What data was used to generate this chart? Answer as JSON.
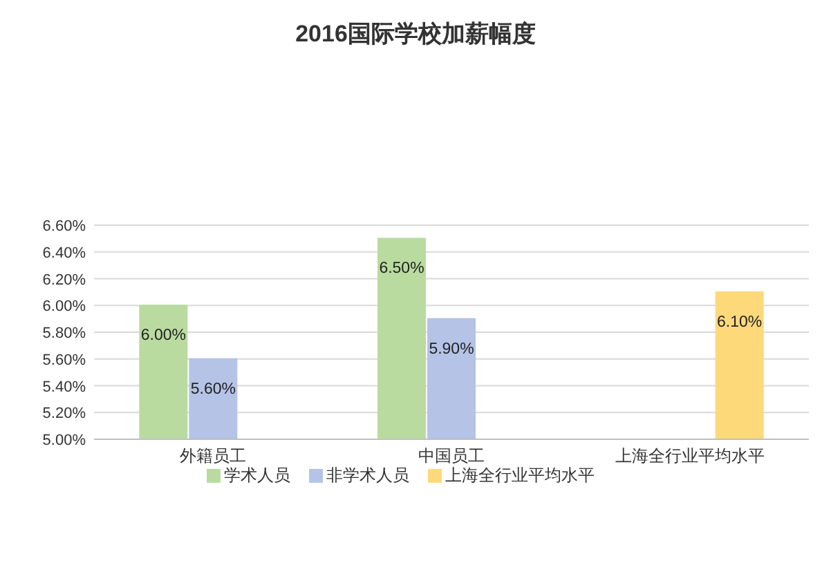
{
  "chart_data": {
    "type": "bar",
    "title": "2016国际学校加薪幅度",
    "categories": [
      "外籍员工",
      "中国员工",
      "上海全行业平均水平"
    ],
    "series": [
      {
        "name": "学术人员",
        "color": "#b9dba0",
        "values": [
          6.0,
          6.5,
          null
        ],
        "value_labels": [
          "6.00%",
          "6.50%",
          null
        ]
      },
      {
        "name": "非学术人员",
        "color": "#b4c3e6",
        "values": [
          5.6,
          5.9,
          null
        ],
        "value_labels": [
          "5.60%",
          "5.90%",
          null
        ]
      },
      {
        "name": "上海全行业平均水平",
        "color": "#fdd97a",
        "values": [
          null,
          null,
          6.1
        ],
        "value_labels": [
          null,
          null,
          "6.10%"
        ]
      }
    ],
    "ylim": [
      5.0,
      6.6
    ],
    "yticks": [
      {
        "value": 5.0,
        "label": "5.00%"
      },
      {
        "value": 5.2,
        "label": "5.20%"
      },
      {
        "value": 5.4,
        "label": "5.40%"
      },
      {
        "value": 5.6,
        "label": "5.60%"
      },
      {
        "value": 5.8,
        "label": "5.80%"
      },
      {
        "value": 6.0,
        "label": "6.00%"
      },
      {
        "value": 6.2,
        "label": "6.20%"
      },
      {
        "value": 6.4,
        "label": "6.40%"
      },
      {
        "value": 6.6,
        "label": "6.60%"
      }
    ],
    "grid": "y",
    "legend": "bottom"
  }
}
